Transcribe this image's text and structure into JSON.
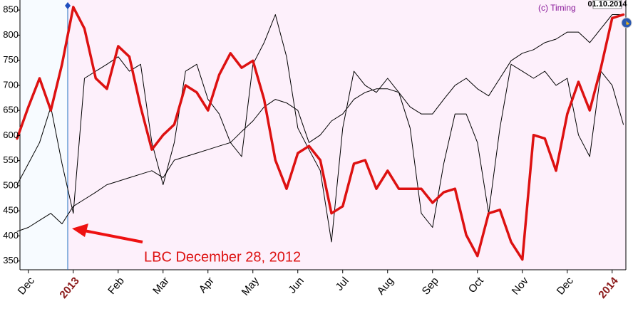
{
  "chart_data": {
    "type": "line",
    "watermark": "(c) Timing",
    "date": "01.10.2014",
    "annotation": "LBC December 28, 2012",
    "categories": [
      null,
      "Dec",
      null,
      null,
      null,
      "2013",
      null,
      null,
      null,
      "Feb",
      null,
      null,
      null,
      "Mar",
      null,
      null,
      null,
      "Apr",
      null,
      null,
      null,
      "May",
      null,
      null,
      null,
      "Jun",
      null,
      null,
      null,
      "Jul",
      null,
      null,
      null,
      "Aug",
      null,
      null,
      null,
      "Sep",
      null,
      null,
      null,
      "Oct",
      null,
      null,
      null,
      "Nov",
      null,
      null,
      null,
      "Dec",
      null,
      null,
      null,
      "2014",
      null
    ],
    "series": [
      {
        "color": "#dd1111",
        "width": 3.5,
        "values": [
          594,
          657,
          714,
          650,
          742,
          856,
          813,
          714,
          693,
          778,
          757,
          657,
          572,
          601,
          622,
          700,
          686,
          650,
          721,
          764,
          735,
          749,
          672,
          551,
          494,
          565,
          579,
          551,
          445,
          459,
          544,
          551,
          494,
          530,
          494,
          494,
          494,
          466,
          487,
          494,
          402,
          360,
          445,
          452,
          388,
          353,
          601,
          594,
          530,
          643,
          707,
          650,
          735,
          834,
          841
        ]
      },
      {
        "color": "#000000",
        "width": 1,
        "values": [
          409,
          417,
          431,
          445,
          424,
          459,
          473,
          487,
          502,
          509,
          516,
          523,
          530,
          516,
          551,
          558,
          565,
          572,
          579,
          586,
          608,
          629,
          657,
          672,
          665,
          650,
          586,
          601,
          629,
          643,
          672,
          686,
          693,
          693,
          686,
          657,
          643,
          643,
          672,
          700,
          714,
          693,
          679,
          714,
          749,
          764,
          771,
          785,
          792,
          806,
          806,
          785,
          813,
          841,
          841
        ]
      },
      {
        "color": "#000000",
        "width": 1,
        "values": [
          502,
          544,
          586,
          657,
          544,
          445,
          714,
          728,
          742,
          757,
          728,
          742,
          586,
          502,
          586,
          728,
          742,
          672,
          643,
          586,
          558,
          742,
          785,
          841,
          757,
          615,
          572,
          530,
          388,
          615,
          728,
          700,
          686,
          714,
          686,
          615,
          445,
          417,
          544,
          643,
          643,
          586,
          445,
          615,
          742,
          728,
          714,
          728,
          700,
          714,
          601,
          558,
          728,
          700,
          622
        ]
      }
    ],
    "ylim": [
      334,
      870
    ],
    "yticks": [
      350,
      400,
      450,
      500,
      550,
      600,
      650,
      700,
      750,
      800,
      850
    ]
  }
}
